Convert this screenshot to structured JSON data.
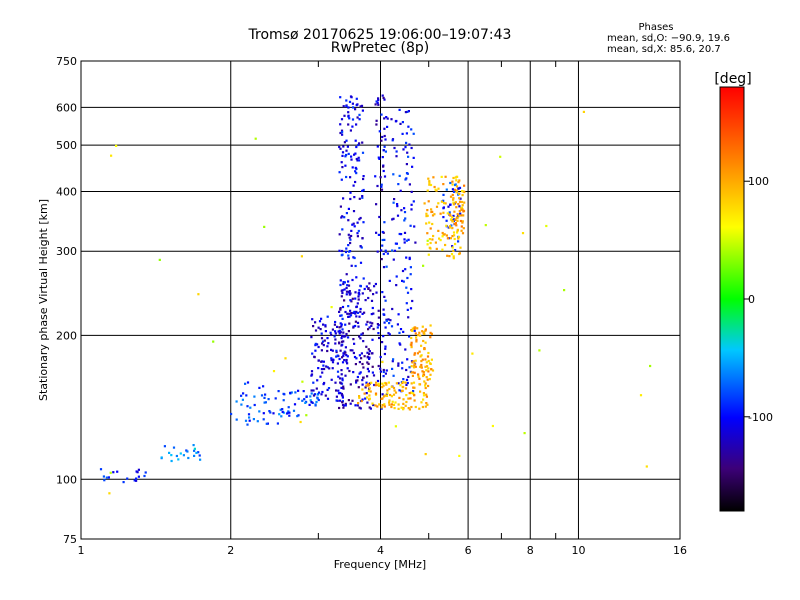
{
  "chart_data": {
    "type": "scatter",
    "title": "Tromsø 20170625 19:06:00–19:07:43",
    "subtitle": "RwPretec (8p)",
    "xlabel": "Frequency [MHz]",
    "ylabel": "Stationary phase Virtual Height [km]",
    "xscale": "log",
    "yscale": "log",
    "xlim": [
      1,
      16
    ],
    "ylim": [
      75,
      750
    ],
    "xticks": [
      1,
      2,
      4,
      6,
      8,
      10,
      16
    ],
    "xtick_labels": [
      "1",
      "2",
      "4",
      "6",
      "8",
      "10",
      "16"
    ],
    "xminor": [
      3,
      5,
      7,
      9
    ],
    "yticks": [
      75,
      100,
      200,
      300,
      400,
      500,
      600,
      750
    ],
    "ytick_labels": [
      "75",
      "100",
      "200",
      "300",
      "400",
      "500",
      "600",
      "750"
    ],
    "grid": true,
    "stats": {
      "heading": "Phases",
      "o_mode": "mean, sd,O: −90.9, 19.6",
      "x_mode": "mean, sd,X:  85.6, 20.7"
    },
    "colorbar": {
      "label": "[deg]",
      "range": [
        -180,
        180
      ],
      "ticks": [
        -100,
        0,
        100
      ],
      "tick_labels": [
        "-100",
        "0",
        "100"
      ]
    },
    "clusters": [
      {
        "x": [
          1.05,
          1.35
        ],
        "y": [
          98,
          106
        ],
        "phase": -95,
        "n": 18
      },
      {
        "x": [
          1.45,
          1.75
        ],
        "y": [
          108,
          118
        ],
        "phase": -60,
        "n": 22
      },
      {
        "x": [
          2.0,
          2.5
        ],
        "y": [
          130,
          160
        ],
        "phase": -85,
        "n": 40
      },
      {
        "x": [
          2.5,
          3.0
        ],
        "y": [
          135,
          155
        ],
        "phase": -80,
        "n": 45
      },
      {
        "x": [
          2.9,
          3.4
        ],
        "y": [
          145,
          220
        ],
        "phase": -110,
        "n": 130
      },
      {
        "x": [
          3.3,
          3.9
        ],
        "y": [
          140,
          260
        ],
        "phase": -120,
        "n": 180
      },
      {
        "x": [
          3.3,
          3.7
        ],
        "y": [
          220,
          640
        ],
        "phase": -105,
        "n": 170
      },
      {
        "x": [
          4.0,
          4.7
        ],
        "y": [
          150,
          600
        ],
        "phase": -100,
        "n": 170
      },
      {
        "x": [
          3.9,
          4.1
        ],
        "y": [
          140,
          650
        ],
        "phase": -115,
        "n": 60
      },
      {
        "x": [
          5.3,
          5.8
        ],
        "y": [
          300,
          420
        ],
        "phase": -90,
        "n": 45
      },
      {
        "x": [
          3.6,
          5.0
        ],
        "y": [
          140,
          160
        ],
        "phase": 95,
        "n": 120
      },
      {
        "x": [
          4.6,
          5.1
        ],
        "y": [
          160,
          210
        ],
        "phase": 100,
        "n": 90
      },
      {
        "x": [
          4.9,
          5.9
        ],
        "y": [
          290,
          430
        ],
        "phase": 90,
        "n": 110
      },
      {
        "x": [
          5.5,
          5.9
        ],
        "y": [
          330,
          430
        ],
        "phase": 100,
        "n": 40
      },
      {
        "x": [
          1.0,
          16.0
        ],
        "y": [
          80,
          650
        ],
        "phase": 60,
        "n": 35
      }
    ]
  }
}
